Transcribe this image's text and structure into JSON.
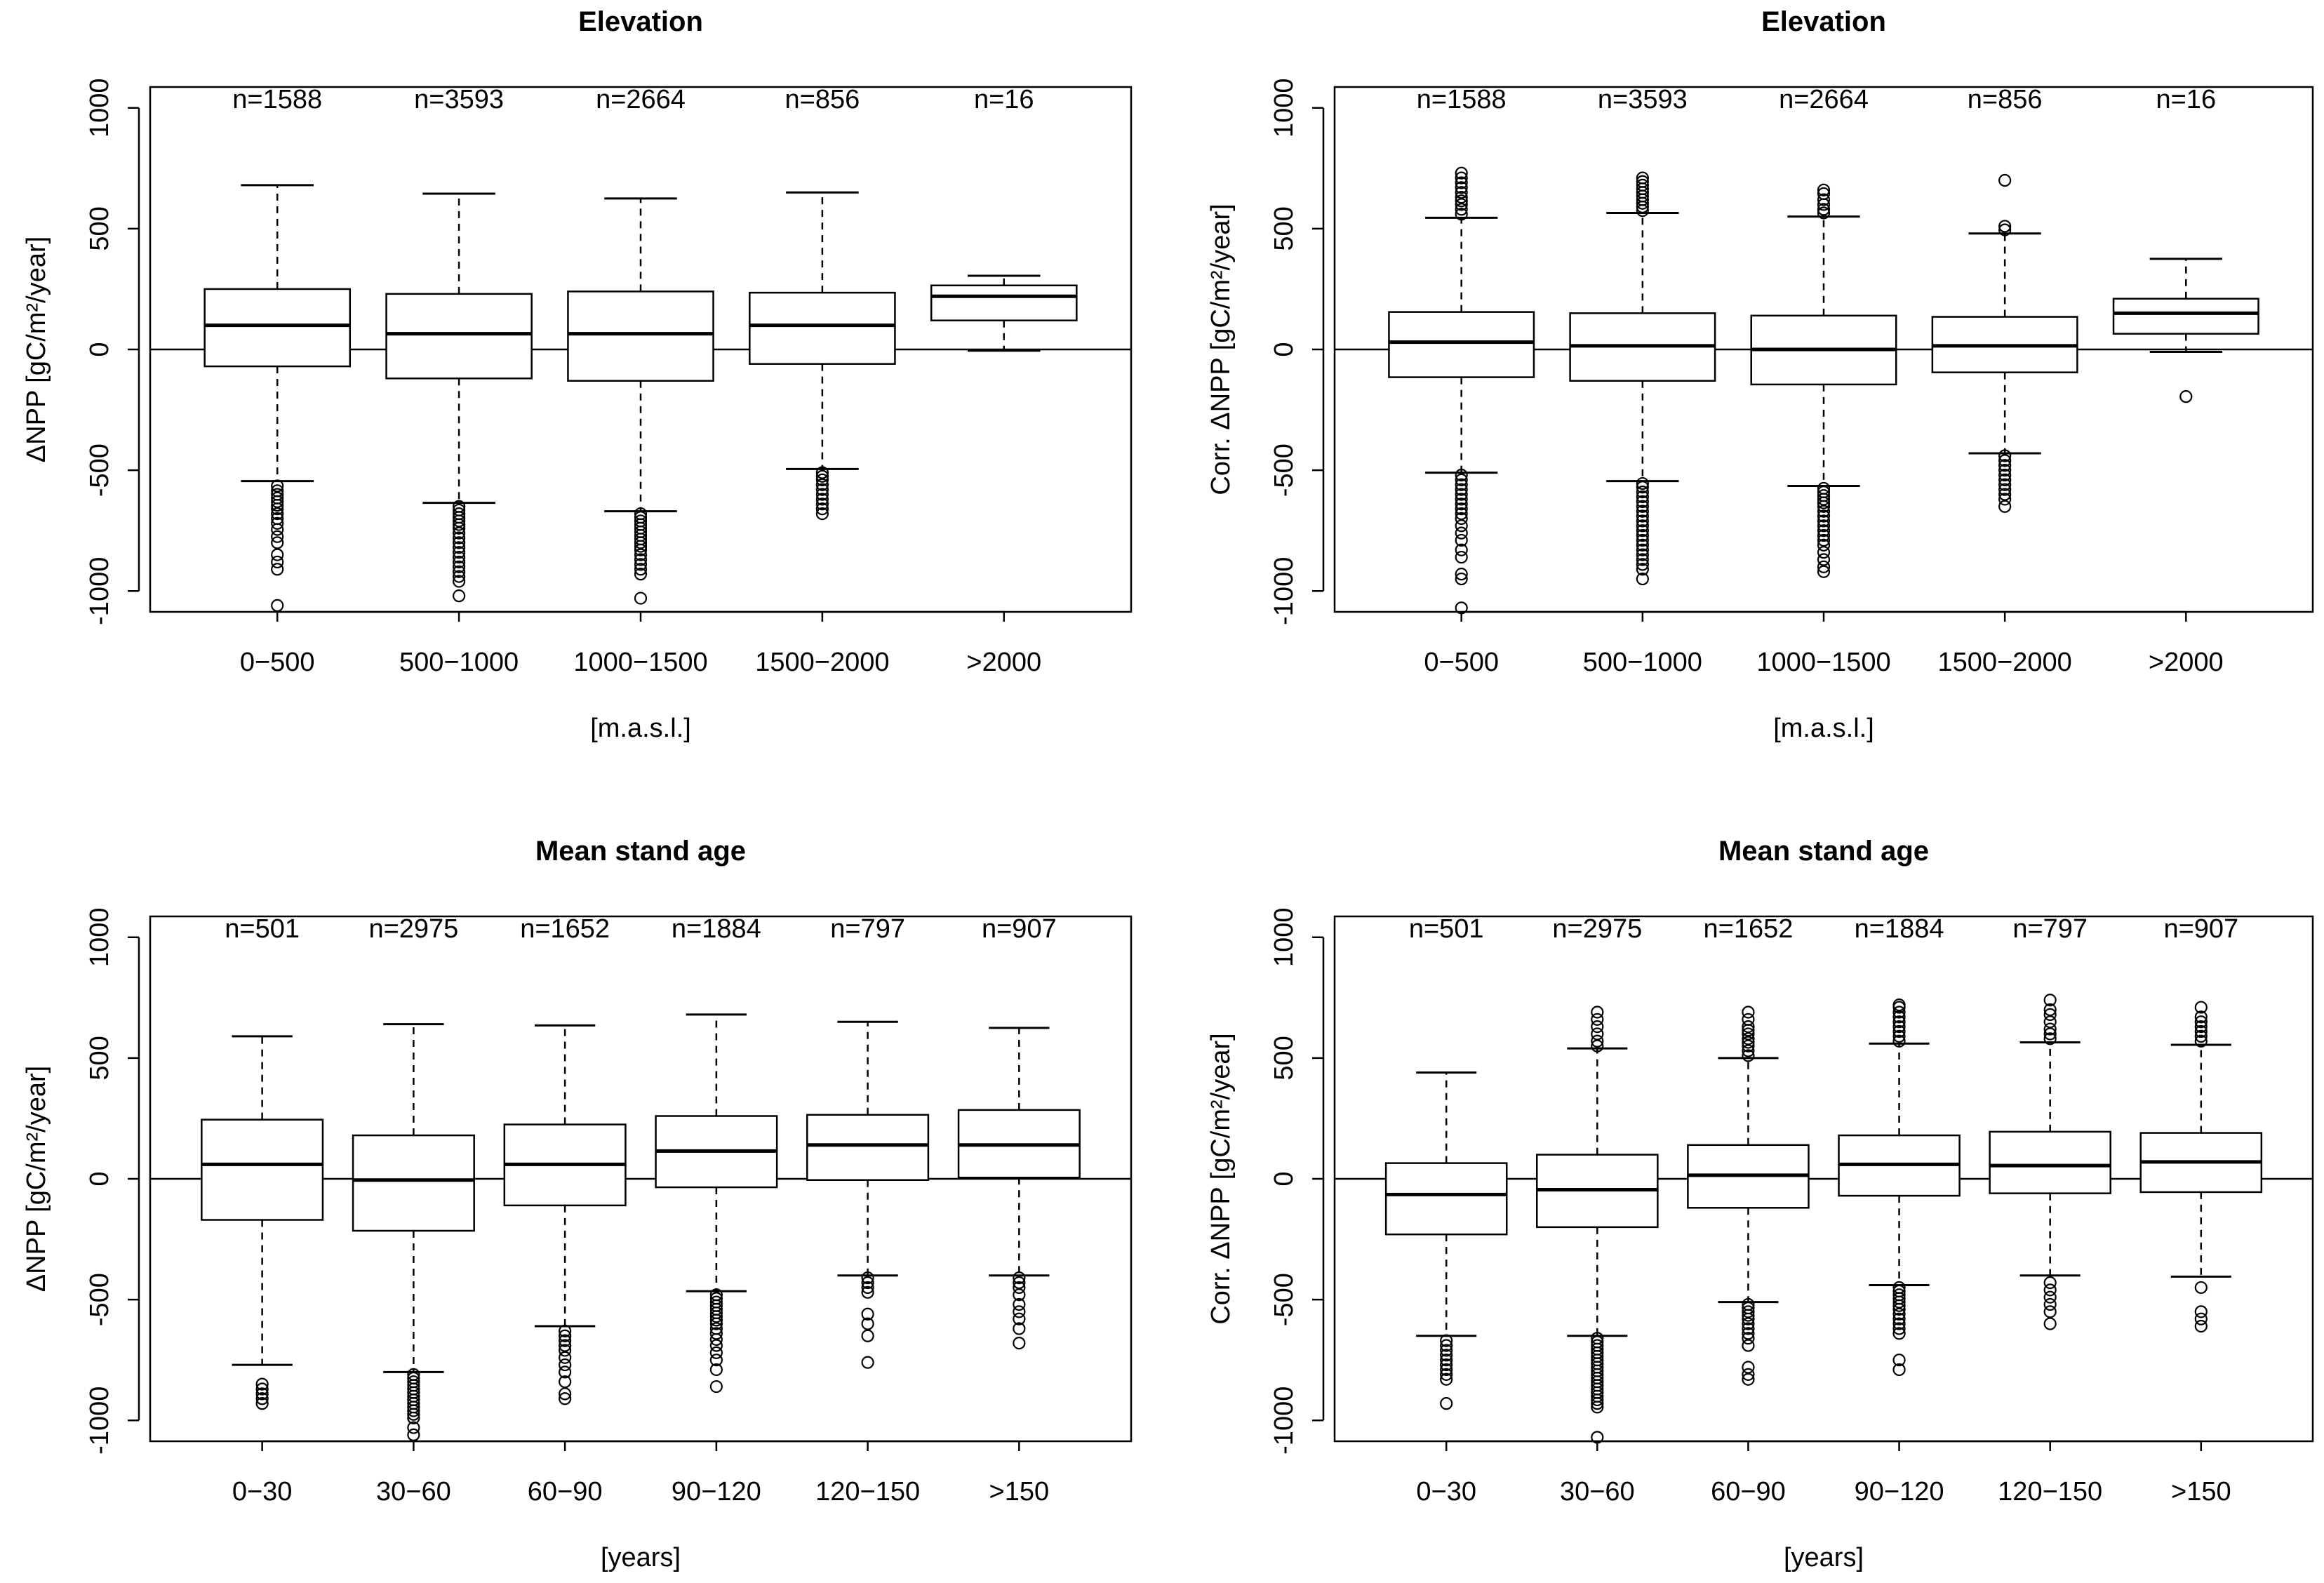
{
  "chart_data": [
    {
      "type": "box",
      "title": "Elevation",
      "xlabel": "[m.a.s.l.]",
      "ylabel": "ΔNPP [gC/m²/year]",
      "ylim": [
        -1000,
        1000
      ],
      "yticks": [
        "-1000",
        "-500",
        "0",
        "500",
        "1000"
      ],
      "reference_line": 0,
      "categories": [
        "0−500",
        "500−1000",
        "1000−1500",
        "1500−2000",
        ">2000"
      ],
      "counts": [
        "n=1588",
        "n=3593",
        "n=2664",
        "n=856",
        "n=16"
      ],
      "boxes": [
        {
          "whisker_low": -545,
          "q1": -70,
          "median": 100,
          "q3": 250,
          "whisker_high": 680,
          "outliers": [
            -565,
            -585,
            -600,
            -615,
            -630,
            -645,
            -660,
            -680,
            -700,
            -720,
            -745,
            -775,
            -800,
            -850,
            -880,
            -910,
            -1060
          ]
        },
        {
          "whisker_low": -635,
          "q1": -120,
          "median": 65,
          "q3": 230,
          "whisker_high": 645,
          "outliers": [
            -650,
            -665,
            -680,
            -695,
            -710,
            -725,
            -740,
            -760,
            -780,
            -800,
            -820,
            -840,
            -860,
            -880,
            -900,
            -920,
            -940,
            -960,
            -1020
          ]
        },
        {
          "whisker_low": -670,
          "q1": -130,
          "median": 65,
          "q3": 240,
          "whisker_high": 625,
          "outliers": [
            -680,
            -695,
            -710,
            -725,
            -740,
            -755,
            -770,
            -785,
            -800,
            -815,
            -830,
            -850,
            -870,
            -890,
            -910,
            -930,
            -1030
          ]
        },
        {
          "whisker_low": -495,
          "q1": -60,
          "median": 100,
          "q3": 235,
          "whisker_high": 650,
          "outliers": [
            -510,
            -525,
            -540,
            -560,
            -580,
            -600,
            -620,
            -640,
            -660,
            -680
          ]
        },
        {
          "whisker_low": -5,
          "q1": 120,
          "median": 220,
          "q3": 265,
          "whisker_high": 305,
          "outliers": []
        }
      ]
    },
    {
      "type": "box",
      "title": "Elevation",
      "xlabel": "[m.a.s.l.]",
      "ylabel": "Corr. ΔNPP [gC/m²/year]",
      "ylim": [
        -1000,
        1000
      ],
      "yticks": [
        "-1000",
        "-500",
        "0",
        "500",
        "1000"
      ],
      "reference_line": 0,
      "categories": [
        "0−500",
        "500−1000",
        "1000−1500",
        "1500−2000",
        ">2000"
      ],
      "counts": [
        "n=1588",
        "n=3593",
        "n=2664",
        "n=856",
        "n=16"
      ],
      "boxes": [
        {
          "whisker_low": -510,
          "q1": -115,
          "median": 30,
          "q3": 155,
          "whisker_high": 545,
          "outliers": [
            560,
            580,
            600,
            615,
            630,
            650,
            670,
            690,
            710,
            730,
            -520,
            -540,
            -560,
            -580,
            -600,
            -620,
            -640,
            -660,
            -680,
            -700,
            -730,
            -760,
            -790,
            -830,
            -860,
            -930,
            -950,
            -1070
          ]
        },
        {
          "whisker_low": -545,
          "q1": -130,
          "median": 15,
          "q3": 150,
          "whisker_high": 565,
          "outliers": [
            575,
            590,
            605,
            620,
            635,
            650,
            665,
            680,
            695,
            710,
            -555,
            -570,
            -590,
            -610,
            -630,
            -650,
            -670,
            -690,
            -710,
            -730,
            -750,
            -770,
            -790,
            -810,
            -830,
            -850,
            -870,
            -890,
            -910,
            -950
          ]
        },
        {
          "whisker_low": -565,
          "q1": -145,
          "median": 0,
          "q3": 140,
          "whisker_high": 550,
          "outliers": [
            565,
            580,
            600,
            620,
            645,
            660,
            -575,
            -590,
            -605,
            -620,
            -635,
            -650,
            -670,
            -690,
            -710,
            -730,
            -750,
            -770,
            -790,
            -810,
            -840,
            -870,
            -900,
            -920
          ]
        },
        {
          "whisker_low": -430,
          "q1": -95,
          "median": 15,
          "q3": 135,
          "whisker_high": 480,
          "outliers": [
            495,
            510,
            700,
            -440,
            -460,
            -480,
            -500,
            -520,
            -540,
            -560,
            -580,
            -600,
            -620,
            -650
          ]
        },
        {
          "whisker_low": -10,
          "q1": 65,
          "median": 150,
          "q3": 210,
          "whisker_high": 375,
          "outliers": [
            -195
          ]
        }
      ]
    },
    {
      "type": "box",
      "title": "Mean stand age",
      "xlabel": "[years]",
      "ylabel": "ΔNPP [gC/m²/year]",
      "ylim": [
        -1000,
        1000
      ],
      "yticks": [
        "-1000",
        "-500",
        "0",
        "500",
        "1000"
      ],
      "reference_line": 0,
      "categories": [
        "0−30",
        "30−60",
        "60−90",
        "90−120",
        "120−150",
        ">150"
      ],
      "counts": [
        "n=501",
        "n=2975",
        "n=1652",
        "n=1884",
        "n=797",
        "n=907"
      ],
      "boxes": [
        {
          "whisker_low": -770,
          "q1": -170,
          "median": 60,
          "q3": 245,
          "whisker_high": 590,
          "outliers": [
            -850,
            -870,
            -890,
            -910,
            -930
          ]
        },
        {
          "whisker_low": -800,
          "q1": -215,
          "median": -5,
          "q3": 180,
          "whisker_high": 640,
          "outliers": [
            -810,
            -825,
            -840,
            -855,
            -870,
            -885,
            -900,
            -915,
            -930,
            -945,
            -960,
            -975,
            -990,
            -1030,
            -1060
          ]
        },
        {
          "whisker_low": -610,
          "q1": -110,
          "median": 60,
          "q3": 225,
          "whisker_high": 635,
          "outliers": [
            -630,
            -650,
            -670,
            -690,
            -710,
            -740,
            -770,
            -800,
            -840,
            -890,
            -910
          ]
        },
        {
          "whisker_low": -465,
          "q1": -35,
          "median": 115,
          "q3": 260,
          "whisker_high": 680,
          "outliers": [
            -480,
            -495,
            -510,
            -525,
            -540,
            -555,
            -570,
            -585,
            -600,
            -620,
            -640,
            -665,
            -690,
            -720,
            -750,
            -790,
            -860
          ]
        },
        {
          "whisker_low": -400,
          "q1": -5,
          "median": 140,
          "q3": 265,
          "whisker_high": 650,
          "outliers": [
            -410,
            -430,
            -450,
            -470,
            -560,
            -600,
            -650,
            -760
          ]
        },
        {
          "whisker_low": -400,
          "q1": 5,
          "median": 140,
          "q3": 285,
          "whisker_high": 625,
          "outliers": [
            -410,
            -430,
            -450,
            -480,
            -520,
            -550,
            -580,
            -620,
            -680
          ]
        }
      ]
    },
    {
      "type": "box",
      "title": "Mean stand age",
      "xlabel": "[years]",
      "ylabel": "Corr. ΔNPP [gC/m²/year]",
      "ylim": [
        -1000,
        1000
      ],
      "yticks": [
        "-1000",
        "-500",
        "0",
        "500",
        "1000"
      ],
      "reference_line": 0,
      "categories": [
        "0−30",
        "30−60",
        "60−90",
        "90−120",
        "120−150",
        ">150"
      ],
      "counts": [
        "n=501",
        "n=2975",
        "n=1652",
        "n=1884",
        "n=797",
        "n=907"
      ],
      "boxes": [
        {
          "whisker_low": -650,
          "q1": -230,
          "median": -65,
          "q3": 65,
          "whisker_high": 440,
          "outliers": [
            -670,
            -690,
            -710,
            -730,
            -750,
            -770,
            -790,
            -810,
            -830,
            -930
          ]
        },
        {
          "whisker_low": -650,
          "q1": -200,
          "median": -45,
          "q3": 100,
          "whisker_high": 540,
          "outliers": [
            550,
            570,
            600,
            630,
            660,
            690,
            -660,
            -675,
            -690,
            -705,
            -720,
            -735,
            -750,
            -765,
            -780,
            -795,
            -810,
            -825,
            -840,
            -855,
            -870,
            -885,
            -900,
            -915,
            -930,
            -945,
            -1070
          ]
        },
        {
          "whisker_low": -510,
          "q1": -120,
          "median": 15,
          "q3": 140,
          "whisker_high": 500,
          "outliers": [
            510,
            530,
            550,
            565,
            580,
            600,
            615,
            630,
            660,
            690,
            -520,
            -535,
            -550,
            -565,
            -580,
            -600,
            -620,
            -640,
            -660,
            -690,
            -780,
            -810,
            -830
          ]
        },
        {
          "whisker_low": -440,
          "q1": -70,
          "median": 60,
          "q3": 180,
          "whisker_high": 560,
          "outliers": [
            570,
            590,
            610,
            630,
            650,
            670,
            690,
            710,
            720,
            -450,
            -465,
            -480,
            -495,
            -510,
            -525,
            -540,
            -560,
            -580,
            -600,
            -620,
            -640,
            -750,
            -790
          ]
        },
        {
          "whisker_low": -400,
          "q1": -60,
          "median": 55,
          "q3": 195,
          "whisker_high": 565,
          "outliers": [
            580,
            600,
            620,
            650,
            680,
            700,
            740,
            -430,
            -460,
            -490,
            -520,
            -550,
            -600
          ]
        },
        {
          "whisker_low": -405,
          "q1": -55,
          "median": 70,
          "q3": 190,
          "whisker_high": 555,
          "outliers": [
            570,
            590,
            610,
            630,
            650,
            670,
            710,
            -450,
            -550,
            -580,
            -610
          ]
        }
      ]
    }
  ]
}
